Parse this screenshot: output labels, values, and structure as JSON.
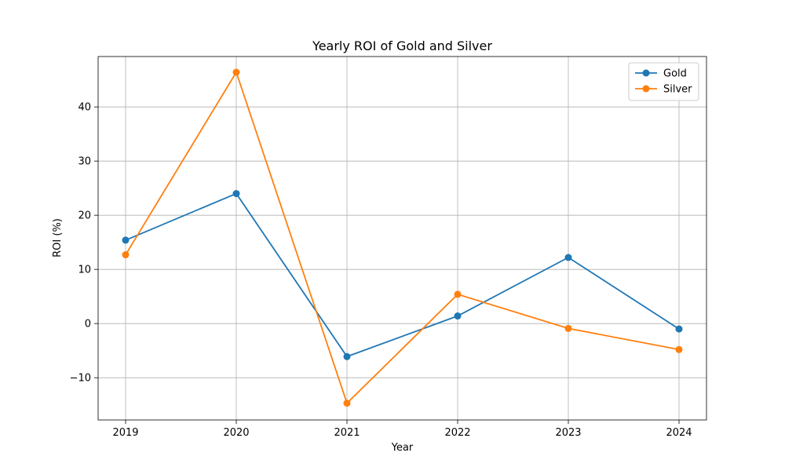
{
  "chart_data": {
    "type": "line",
    "title": "Yearly ROI of Gold and Silver",
    "xlabel": "Year",
    "ylabel": "ROI (%)",
    "x": [
      "2019",
      "2020",
      "2021",
      "2022",
      "2023",
      "2024"
    ],
    "ylim": [
      -17.8,
      49.3
    ],
    "yticks": [
      -10,
      0,
      10,
      20,
      30,
      40
    ],
    "ytick_labels": [
      "−10",
      "0",
      "10",
      "20",
      "30",
      "40"
    ],
    "grid": true,
    "legend_position": "top-right",
    "series": [
      {
        "name": "Gold",
        "color": "#1f77b4",
        "values": [
          15.4,
          24.0,
          -6.1,
          1.4,
          12.2,
          -1.0
        ]
      },
      {
        "name": "Silver",
        "color": "#ff7f0e",
        "values": [
          12.7,
          46.4,
          -14.7,
          5.4,
          -0.9,
          -4.8
        ]
      }
    ]
  }
}
